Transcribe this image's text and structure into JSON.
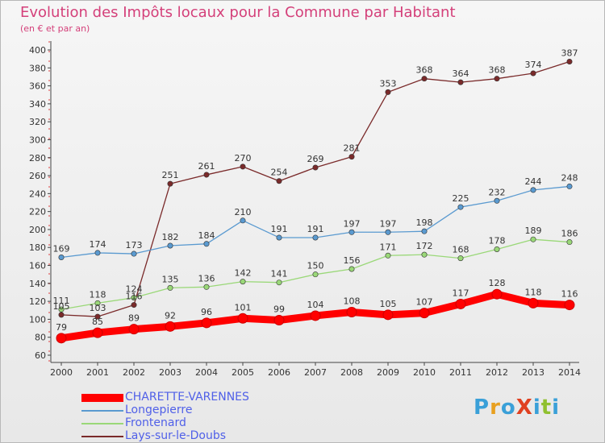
{
  "header": {
    "title": "Evolution des Impôts locaux pour la Commune par Habitant",
    "subtitle": "(en € et par an)"
  },
  "logo": {
    "text": "ProXiti",
    "colors": [
      "#3aa0d8",
      "#e8a020",
      "#3aa0d8",
      "#e04020",
      "#3aa0d8",
      "#90c030",
      "#3aa0d8"
    ]
  },
  "chart_data": {
    "type": "line",
    "title": "Evolution des Impôts locaux pour la Commune par Habitant",
    "subtitle": "(en € et par an)",
    "xlabel": "",
    "ylabel": "",
    "categories": [
      "2000",
      "2001",
      "2002",
      "2003",
      "2004",
      "2005",
      "2006",
      "2007",
      "2008",
      "2009",
      "2010",
      "2011",
      "2012",
      "2013",
      "2014"
    ],
    "y_ticks": [
      60,
      80,
      100,
      120,
      140,
      160,
      180,
      200,
      220,
      240,
      260,
      280,
      300,
      320,
      340,
      360,
      380,
      400
    ],
    "ylim": [
      60,
      400
    ],
    "grid": false,
    "legend_position": "bottom-left",
    "series": [
      {
        "name": "CHARETTE-VARENNES",
        "color": "#ff0000",
        "values": [
          79,
          85,
          89,
          92,
          96,
          101,
          99,
          104,
          108,
          105,
          107,
          117,
          128,
          118,
          116
        ],
        "labels": [
          "79",
          "85",
          "89",
          "92",
          "96",
          "101",
          "99",
          "104",
          "108",
          "105",
          "107",
          "117",
          "128",
          "118",
          "116"
        ]
      },
      {
        "name": "Longepierre",
        "color": "#5a9ad0",
        "values": [
          169,
          174,
          173,
          182,
          184,
          210,
          191,
          191,
          197,
          197,
          198,
          225,
          232,
          244,
          248
        ],
        "labels": [
          "169",
          "174",
          "173",
          "182",
          "184",
          "210",
          "191",
          "191",
          "197",
          "197",
          "198",
          "225",
          "232",
          "244",
          "248"
        ]
      },
      {
        "name": "Frontenard",
        "color": "#9ad878",
        "values": [
          111,
          118,
          124,
          135,
          136,
          142,
          141,
          150,
          156,
          171,
          172,
          168,
          178,
          189,
          186
        ],
        "labels": [
          "111",
          "118",
          "124",
          "135",
          "136",
          "142",
          "141",
          "150",
          "156",
          "171",
          "172",
          "168",
          "178",
          "189",
          "186"
        ]
      },
      {
        "name": "Lays-sur-le-Doubs",
        "color": "#7a2a2a",
        "values": [
          105,
          103,
          116,
          251,
          261,
          270,
          254,
          269,
          281,
          353,
          368,
          364,
          368,
          374,
          387
        ],
        "labels": [
          "105",
          "103",
          "116",
          "251",
          "261",
          "270",
          "254",
          "269",
          "281",
          "353",
          "368",
          "364",
          "368",
          "374",
          "387"
        ]
      }
    ]
  }
}
